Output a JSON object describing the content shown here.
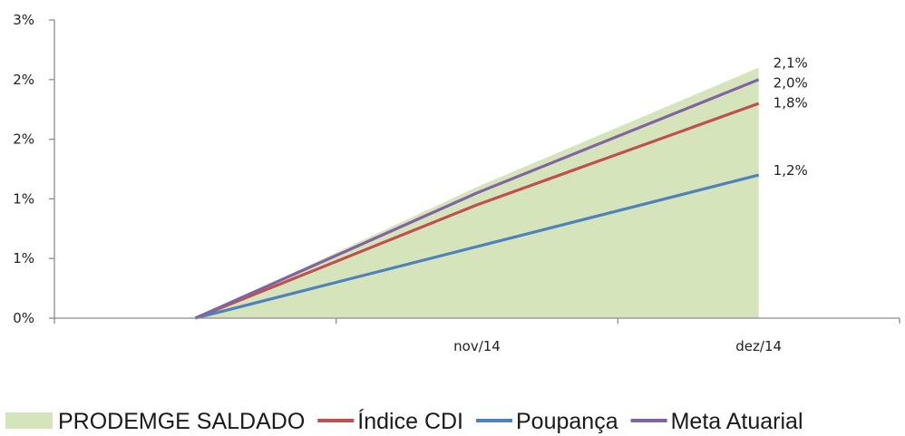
{
  "chart_data": {
    "type": "line",
    "title": "",
    "xlabel": "",
    "ylabel": "",
    "x": [
      "",
      "nov/14",
      "dez/14"
    ],
    "y_tick_labels": [
      "0%",
      "1%",
      "1%",
      "2%",
      "2%",
      "3%"
    ],
    "ylim": [
      0,
      2.5
    ],
    "grid": false,
    "legend_position": "bottom",
    "area_series": {
      "name": "PRODEMGE SALDADO",
      "values": [
        0,
        1.1,
        2.1
      ],
      "color": "#d6e4bc"
    },
    "series": [
      {
        "name": "Índice CDI",
        "values": [
          0,
          0.95,
          1.8
        ],
        "color": "#c0504d",
        "end_label": "1,8%"
      },
      {
        "name": "Poupança",
        "values": [
          0,
          0.6,
          1.2
        ],
        "color": "#4f81bd",
        "end_label": "1,2%"
      },
      {
        "name": "Meta Atuarial",
        "values": [
          0,
          1.05,
          2.0
        ],
        "color": "#8064a2",
        "end_label": "2,0%"
      }
    ],
    "area_end_label": "2,1%"
  }
}
